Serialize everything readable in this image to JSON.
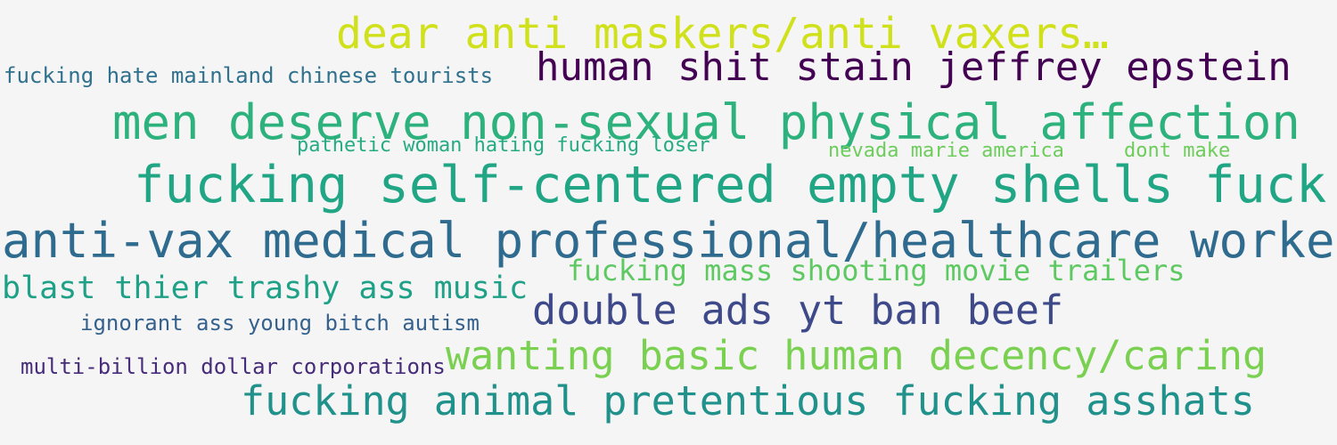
{
  "background_color": "#f5f5f5",
  "phrases": [
    {
      "text": "dear anti maskers/anti vaxers…",
      "color": "#d0e11c"
    },
    {
      "text": "fucking hate mainland chinese tourists",
      "color": "#30718e"
    },
    {
      "text": "human shit stain jeffrey epstein",
      "color": "#440154"
    },
    {
      "text": "men deserve non-sexual physical affection",
      "color": "#2db27d"
    },
    {
      "text": "pathetic woman hating fucking loser",
      "color": "#25ab82"
    },
    {
      "text": "nevada marie america",
      "color": "#6ccd5a"
    },
    {
      "text": "dont make",
      "color": "#6ccd5a"
    },
    {
      "text": "fucking self-centered empty shells fuck",
      "color": "#21a685"
    },
    {
      "text": "anti-vax medical professional/healthcare worker",
      "color": "#2f6b8e"
    },
    {
      "text": "fucking mass shooting movie trailers",
      "color": "#5ec962"
    },
    {
      "text": "blast thier trashy ass music",
      "color": "#1fa187"
    },
    {
      "text": "double ads yt ban beef",
      "color": "#3e4989"
    },
    {
      "text": "ignorant ass young bitch autism",
      "color": "#34618d"
    },
    {
      "text": "wanting basic human decency/caring",
      "color": "#7ad151"
    },
    {
      "text": "multi-billion dollar corporations",
      "color": "#472c7a"
    },
    {
      "text": "fucking animal pretentious fucking asshats",
      "color": "#21918c"
    }
  ]
}
